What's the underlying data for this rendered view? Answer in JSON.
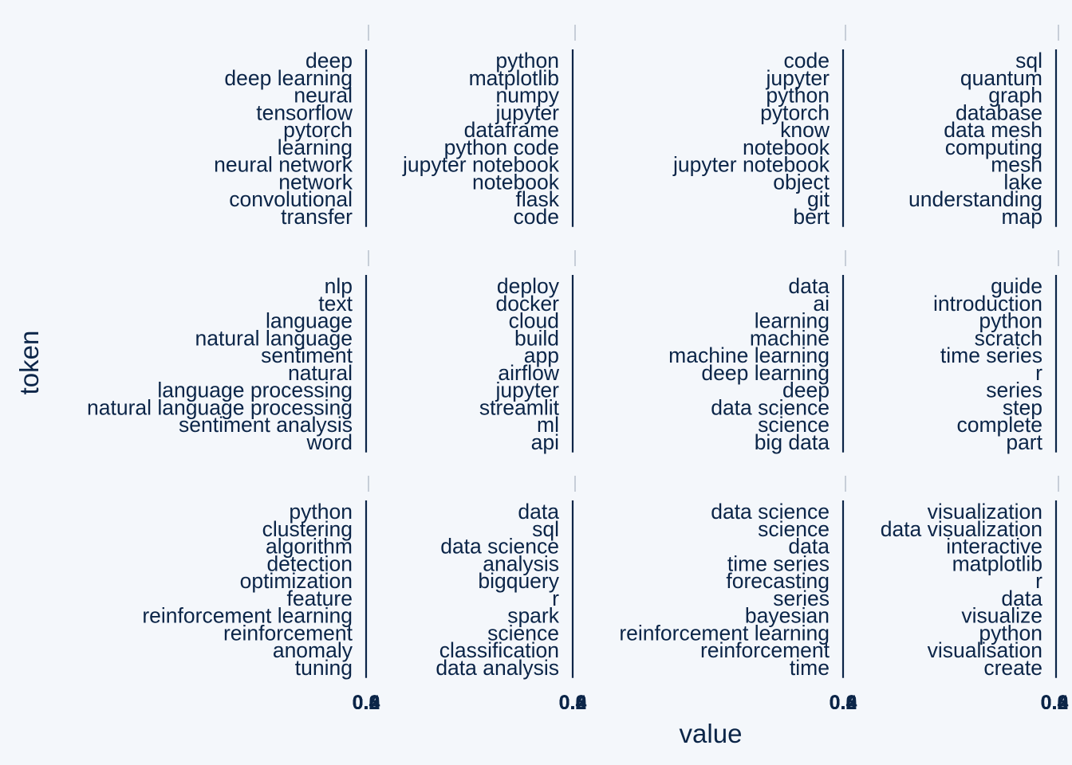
{
  "colors": {
    "background": "#f4f7fb",
    "text": "#0b2548",
    "bar": "#0b2548",
    "axis_line": "#0b2548",
    "strip_tick": "#9aa6b4"
  },
  "chart_data": {
    "type": "bar",
    "orientation": "horizontal",
    "facet_layout": {
      "rows": 3,
      "cols": 4,
      "free_scales": true
    },
    "xlabel": "value",
    "ylabel": "token",
    "x_tick_labels": [
      [
        "0.0",
        "0.2",
        "0.4",
        "0.6"
      ],
      [
        "0.0",
        "0.2",
        "0.4",
        "0.6"
      ],
      [
        "0.0",
        "0.2",
        "0.4",
        "0.6"
      ],
      [
        "0.0",
        "0.2",
        "0.4",
        "0.6"
      ]
    ],
    "value_note": "Bars are not visible; all plotted values appear to be 0.",
    "panels": [
      {
        "tokens": [
          "deep",
          "deep learning",
          "neural",
          "tensorflow",
          "pytorch",
          "learning",
          "neural network",
          "network",
          "convolutional",
          "transfer"
        ],
        "values": [
          0,
          0,
          0,
          0,
          0,
          0,
          0,
          0,
          0,
          0
        ]
      },
      {
        "tokens": [
          "python",
          "matplotlib",
          "numpy",
          "jupyter",
          "dataframe",
          "python code",
          "jupyter notebook",
          "notebook",
          "flask",
          "code"
        ],
        "values": [
          0,
          0,
          0,
          0,
          0,
          0,
          0,
          0,
          0,
          0
        ]
      },
      {
        "tokens": [
          "code",
          "jupyter",
          "python",
          "pytorch",
          "know",
          "notebook",
          "jupyter notebook",
          "object",
          "git",
          "bert"
        ],
        "values": [
          0,
          0,
          0,
          0,
          0,
          0,
          0,
          0,
          0,
          0
        ]
      },
      {
        "tokens": [
          "sql",
          "quantum",
          "graph",
          "database",
          "data mesh",
          "computing",
          "mesh",
          "lake",
          "understanding",
          "map"
        ],
        "values": [
          0,
          0,
          0,
          0,
          0,
          0,
          0,
          0,
          0,
          0
        ]
      },
      {
        "tokens": [
          "nlp",
          "text",
          "language",
          "natural language",
          "sentiment",
          "natural",
          "language processing",
          "natural language processing",
          "sentiment analysis",
          "word"
        ],
        "values": [
          0,
          0,
          0,
          0,
          0,
          0,
          0,
          0,
          0,
          0
        ]
      },
      {
        "tokens": [
          "deploy",
          "docker",
          "cloud",
          "build",
          "app",
          "airflow",
          "jupyter",
          "streamlit",
          "ml",
          "api"
        ],
        "values": [
          0,
          0,
          0,
          0,
          0,
          0,
          0,
          0,
          0,
          0
        ]
      },
      {
        "tokens": [
          "data",
          "ai",
          "learning",
          "machine",
          "machine learning",
          "deep learning",
          "deep",
          "data science",
          "science",
          "big data"
        ],
        "values": [
          0,
          0,
          0,
          0,
          0,
          0,
          0,
          0,
          0,
          0
        ]
      },
      {
        "tokens": [
          "guide",
          "introduction",
          "python",
          "scratch",
          "time series",
          "r",
          "series",
          "step",
          "complete",
          "part"
        ],
        "values": [
          0,
          0,
          0,
          0,
          0,
          0,
          0,
          0,
          0,
          0
        ]
      },
      {
        "tokens": [
          "python",
          "clustering",
          "algorithm",
          "detection",
          "optimization",
          "feature",
          "reinforcement learning",
          "reinforcement",
          "anomaly",
          "tuning"
        ],
        "values": [
          0,
          0,
          0,
          0,
          0,
          0,
          0,
          0,
          0,
          0
        ]
      },
      {
        "tokens": [
          "data",
          "sql",
          "data science",
          "analysis",
          "bigquery",
          "r",
          "spark",
          "science",
          "classification",
          "data analysis"
        ],
        "values": [
          0,
          0,
          0,
          0,
          0,
          0,
          0,
          0,
          0,
          0
        ]
      },
      {
        "tokens": [
          "data science",
          "science",
          "data",
          "time series",
          "forecasting",
          "series",
          "bayesian",
          "reinforcement learning",
          "reinforcement",
          "time"
        ],
        "values": [
          0,
          0,
          0,
          0,
          0,
          0,
          0,
          0,
          0,
          0
        ]
      },
      {
        "tokens": [
          "visualization",
          "data visualization",
          "interactive",
          "matplotlib",
          "r",
          "data",
          "visualize",
          "python",
          "visualisation",
          "create"
        ],
        "values": [
          0,
          0,
          0,
          0,
          0,
          0,
          0,
          0,
          0,
          0
        ]
      }
    ]
  }
}
